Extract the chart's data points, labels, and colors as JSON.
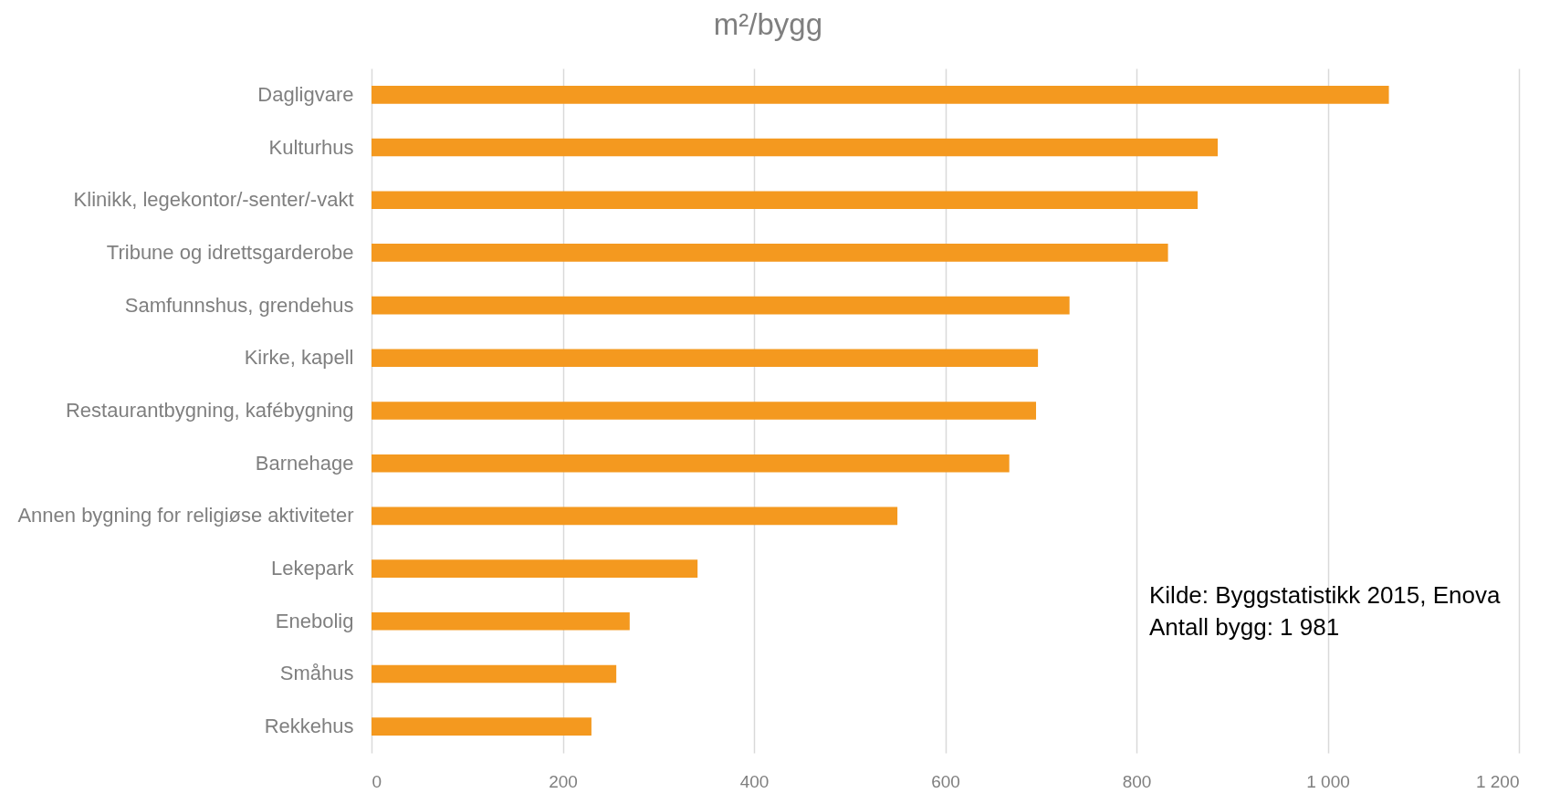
{
  "chart_data": {
    "type": "bar",
    "orientation": "horizontal",
    "title": "m²/bygg",
    "categories": [
      "Dagligvare",
      "Kulturhus",
      "Klinikk, legekontor/-senter/-vakt",
      "Tribune og idrettsgarderobe",
      "Samfunnshus, grendehus",
      "Kirke, kapell",
      "Restaurantbygning, kafébygning",
      "Barnehage",
      "Annen bygning for religiøse aktiviteter",
      "Lekepark",
      "Enebolig",
      "Småhus",
      "Rekkehus"
    ],
    "values": [
      1064,
      885,
      864,
      833,
      730,
      697,
      695,
      667,
      550,
      341,
      270,
      256,
      230
    ],
    "color": "#f4991f",
    "xlim": [
      0,
      1200
    ],
    "xticks": [
      0,
      200,
      400,
      600,
      800,
      {
        "value": 1000,
        "label": "1 000"
      },
      {
        "value": 1200,
        "label": "1 200"
      }
    ],
    "grid": "x",
    "annotations": [
      "Kilde: Byggstatistikk 2015, Enova",
      "Antall bygg: 1 981"
    ]
  }
}
